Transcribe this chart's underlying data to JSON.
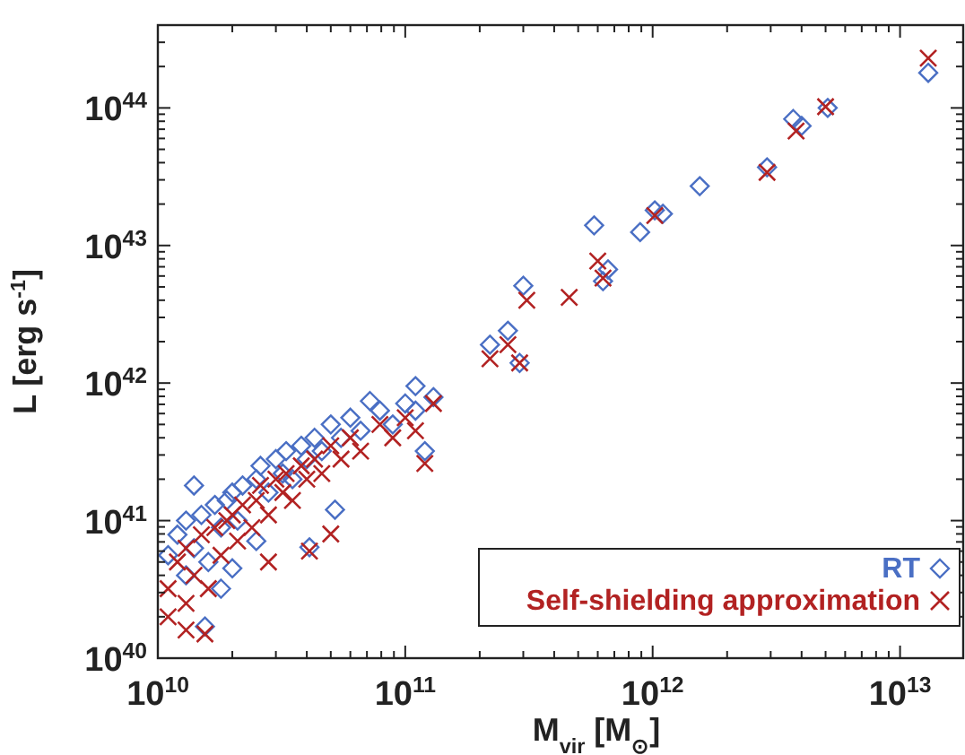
{
  "chart_data": {
    "type": "scatter",
    "xlabel": "M$_{vir}$ [M$_{⊙}$]",
    "ylabel": "L [erg s$^{-1}$]",
    "log": "xy",
    "legend": "bottom right",
    "grid": false,
    "xlim": [
      10000000000.0,
      18000000000000.0
    ],
    "ylim": [
      1e+40,
      4e+44
    ],
    "xticks": [
      {
        "value": 10000000000.0,
        "label": "10$^{10}$"
      },
      {
        "value": 20000000000.0,
        "label": null
      },
      {
        "value": 30000000000.0,
        "label": null
      },
      {
        "value": 40000000000.0,
        "label": null
      },
      {
        "value": 50000000000.0,
        "label": null
      },
      {
        "value": 60000000000.0,
        "label": null
      },
      {
        "value": 70000000000.0,
        "label": null
      },
      {
        "value": 80000000000.0,
        "label": null
      },
      {
        "value": 90000000000.0,
        "label": null
      },
      {
        "value": 100000000000.0,
        "label": "10$^{11}$"
      },
      {
        "value": 200000000000.0,
        "label": null
      },
      {
        "value": 300000000000.0,
        "label": null
      },
      {
        "value": 400000000000.0,
        "label": null
      },
      {
        "value": 500000000000.0,
        "label": null
      },
      {
        "value": 600000000000.0,
        "label": null
      },
      {
        "value": 700000000000.0,
        "label": null
      },
      {
        "value": 800000000000.0,
        "label": null
      },
      {
        "value": 900000000000.0,
        "label": null
      },
      {
        "value": 1000000000000.0,
        "label": "10$^{12}$"
      },
      {
        "value": 2000000000000.0,
        "label": null
      },
      {
        "value": 3000000000000.0,
        "label": null
      },
      {
        "value": 4000000000000.0,
        "label": null
      },
      {
        "value": 5000000000000.0,
        "label": null
      },
      {
        "value": 6000000000000.0,
        "label": null
      },
      {
        "value": 7000000000000.0,
        "label": null
      },
      {
        "value": 8000000000000.0,
        "label": null
      },
      {
        "value": 9000000000000.0,
        "label": null
      },
      {
        "value": 10000000000000.0,
        "label": "10$^{13}$"
      }
    ],
    "yticks": [
      {
        "value": 1e+40,
        "label": "10$^{40}$"
      },
      {
        "value": 2e+40,
        "label": null
      },
      {
        "value": 3e+40,
        "label": null
      },
      {
        "value": 4e+40,
        "label": null
      },
      {
        "value": 5e+40,
        "label": null
      },
      {
        "value": 6e+40,
        "label": null
      },
      {
        "value": 7e+40,
        "label": null
      },
      {
        "value": 8e+40,
        "label": null
      },
      {
        "value": 9e+40,
        "label": null
      },
      {
        "value": 1e+41,
        "label": "10$^{41}$"
      },
      {
        "value": 2e+41,
        "label": null
      },
      {
        "value": 3e+41,
        "label": null
      },
      {
        "value": 4e+41,
        "label": null
      },
      {
        "value": 5e+41,
        "label": null
      },
      {
        "value": 6e+41,
        "label": null
      },
      {
        "value": 7e+41,
        "label": null
      },
      {
        "value": 8e+41,
        "label": null
      },
      {
        "value": 9e+41,
        "label": null
      },
      {
        "value": 1e+42,
        "label": "10$^{42}$"
      },
      {
        "value": 2e+42,
        "label": null
      },
      {
        "value": 3e+42,
        "label": null
      },
      {
        "value": 4e+42,
        "label": null
      },
      {
        "value": 5e+42,
        "label": null
      },
      {
        "value": 6e+42,
        "label": null
      },
      {
        "value": 7e+42,
        "label": null
      },
      {
        "value": 8e+42,
        "label": null
      },
      {
        "value": 9e+42,
        "label": null
      },
      {
        "value": 1e+43,
        "label": "10$^{43}$"
      },
      {
        "value": 2e+43,
        "label": null
      },
      {
        "value": 3e+43,
        "label": null
      },
      {
        "value": 4e+43,
        "label": null
      },
      {
        "value": 5e+43,
        "label": null
      },
      {
        "value": 6e+43,
        "label": null
      },
      {
        "value": 7e+43,
        "label": null
      },
      {
        "value": 8e+43,
        "label": null
      },
      {
        "value": 9e+43,
        "label": null
      },
      {
        "value": 1e+44,
        "label": "10$^{44}$"
      },
      {
        "value": 2e+44,
        "label": null
      },
      {
        "value": 3e+44,
        "label": null
      },
      {
        "value": 4e+44,
        "label": null
      }
    ],
    "series": [
      {
        "name": "RT",
        "color": "#4a6fc4",
        "marker": "diamond",
        "x": [
          11000000000.0,
          12000000000.0,
          13000000000.0,
          13000000000.0,
          14000000000.0,
          15000000000.0,
          16000000000.0,
          17000000000.0,
          18000000000.0,
          19000000000.0,
          20000000000.0,
          21000000000.0,
          22000000000.0,
          24000000000.0,
          25000000000.0,
          26000000000.0,
          28000000000.0,
          30000000000.0,
          32000000000.0,
          33000000000.0,
          35000000000.0,
          38000000000.0,
          40000000000.0,
          43000000000.0,
          46000000000.0,
          50000000000.0,
          55000000000.0,
          60000000000.0,
          66000000000.0,
          79000000000.0,
          89000000000.0,
          100000000000.0,
          110000000000.0,
          130000000000.0,
          20000000000.0,
          25000000000.0,
          18000000000.0,
          14000000000.0,
          15500000000.0,
          120000000000.0,
          110000000000.0,
          72000000000.0,
          41000000000.0,
          52000000000.0,
          13000000000000.0,
          5100000000000.0,
          3700000000000.0,
          4000000000000.0,
          2900000000000.0,
          1550000000000.0,
          1020000000000.0,
          1100000000000.0,
          890000000000.0,
          580000000000.0,
          660000000000.0,
          630000000000.0,
          300000000000.0,
          260000000000.0,
          220000000000.0,
          290000000000.0
        ],
        "values": [
          5.6e+40,
          7.9e+40,
          4e+40,
          1e+41,
          6.3e+40,
          1.1e+41,
          5e+40,
          1.3e+41,
          8.9e+40,
          1.4e+41,
          1.6e+41,
          1e+41,
          1.8e+41,
          null,
          2e+41,
          2.5e+41,
          1.6e+41,
          2.8e+41,
          2.2e+41,
          3.2e+41,
          2e+41,
          3.5e+41,
          2.8e+41,
          4e+41,
          3.2e+41,
          5e+41,
          4e+41,
          5.6e+41,
          4.5e+41,
          6.3e+41,
          5e+41,
          7.1e+41,
          6.3e+41,
          7.9e+41,
          4.5e+40,
          7.1e+40,
          3.2e+40,
          1.8e+41,
          1.7e+40,
          3.2e+41,
          9.5e+41,
          7.4e+41,
          6.4e+40,
          1.2e+41,
          1.8e+44,
          1e+44,
          8.3e+43,
          7.4e+43,
          3.7e+43,
          2.7e+43,
          1.8e+43,
          1.7e+43,
          1.25e+43,
          1.4e+43,
          6.7e+42,
          5.5e+42,
          5.1e+42,
          2.4e+42,
          1.9e+42,
          1.4e+42
        ]
      },
      {
        "name": "Self-shielding approximation",
        "color": "#b22222",
        "marker": "cross",
        "x": [
          11000000000.0,
          12000000000.0,
          13000000000.0,
          13000000000.0,
          14000000000.0,
          15000000000.0,
          16000000000.0,
          17000000000.0,
          18000000000.0,
          19000000000.0,
          20000000000.0,
          21000000000.0,
          22000000000.0,
          24000000000.0,
          25000000000.0,
          26000000000.0,
          28000000000.0,
          30000000000.0,
          32000000000.0,
          33000000000.0,
          35000000000.0,
          38000000000.0,
          40000000000.0,
          43000000000.0,
          46000000000.0,
          50000000000.0,
          55000000000.0,
          60000000000.0,
          66000000000.0,
          79000000000.0,
          89000000000.0,
          100000000000.0,
          110000000000.0,
          130000000000.0,
          11000000000.0,
          13000000000.0,
          28000000000.0,
          15500000000.0,
          120000000000.0,
          41000000000.0,
          50000000000.0,
          13000000000000.0,
          5000000000000.0,
          3800000000000.0,
          2900000000000.0,
          1020000000000.0,
          600000000000.0,
          630000000000.0,
          460000000000.0,
          310000000000.0,
          260000000000.0,
          290000000000.0,
          220000000000.0
        ],
        "values": [
          3.2e+40,
          5e+40,
          2.5e+40,
          6.3e+40,
          4e+40,
          7.9e+40,
          3.2e+40,
          8.9e+40,
          5.6e+40,
          1e+41,
          1.1e+41,
          7.1e+40,
          1.3e+41,
          8.9e+40,
          1.4e+41,
          1.8e+41,
          1.1e+41,
          2e+41,
          1.6e+41,
          2.2e+41,
          1.4e+41,
          2.5e+41,
          2e+41,
          2.8e+41,
          2.2e+41,
          3.5e+41,
          2.8e+41,
          4e+41,
          3.2e+41,
          5e+41,
          4e+41,
          5.6e+41,
          4.5e+41,
          7.1e+41,
          2e+40,
          1.6e+40,
          5e+40,
          1.5e+40,
          2.6e+41,
          6e+40,
          8e+40,
          2.3e+44,
          1.02e+44,
          6.8e+43,
          3.4e+43,
          1.65e+43,
          7.7e+42,
          5.8e+42,
          4.2e+42,
          4e+42,
          1.9e+42,
          1.4e+42,
          1.5e+42
        ]
      }
    ]
  }
}
